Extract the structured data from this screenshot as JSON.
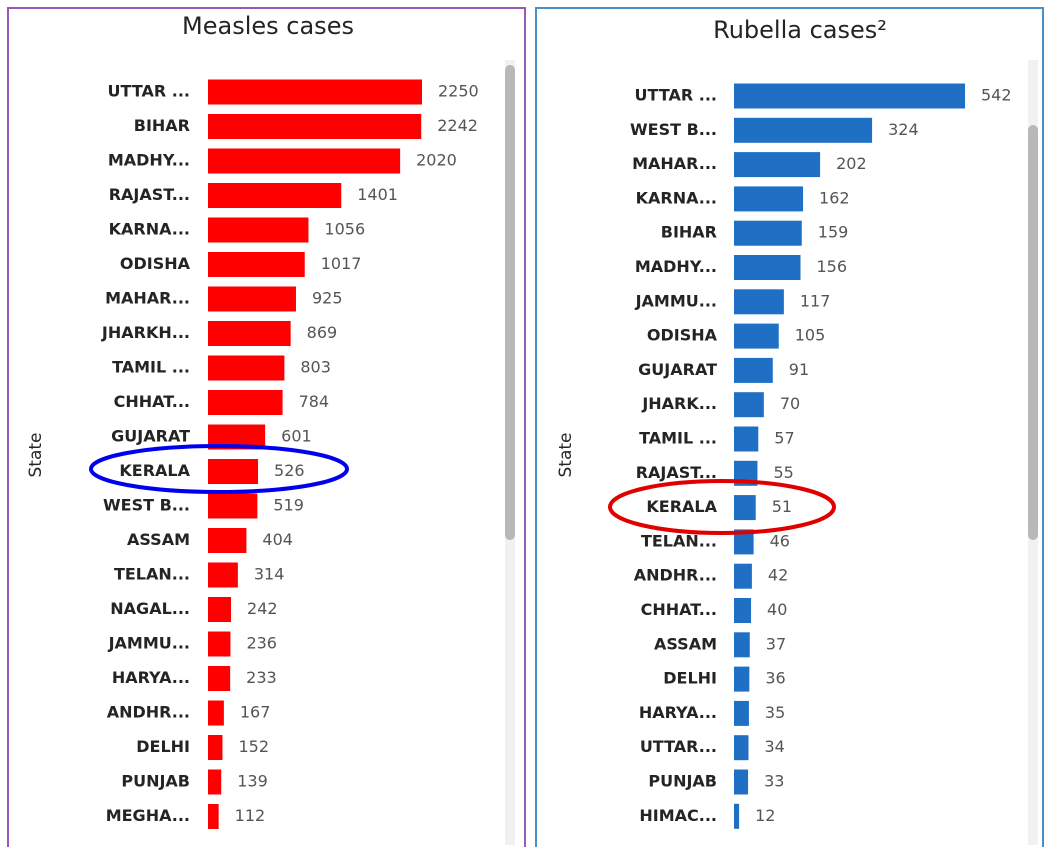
{
  "chart_data": [
    {
      "type": "bar",
      "orientation": "horizontal",
      "title": "Measles cases",
      "y_label": "State",
      "color": "#ff0000",
      "categories": [
        "UTTAR ...",
        "BIHAR",
        "MADHY...",
        "RAJAST...",
        "KARNA...",
        "ODISHA",
        "MAHAR...",
        "JHARKH...",
        "TAMIL ...",
        "CHHAT...",
        "GUJARAT",
        "KERALA",
        "WEST B...",
        "ASSAM",
        "TELAN...",
        "NAGAL...",
        "JAMMU...",
        "HARYA...",
        "ANDHR...",
        "DELHI",
        "PUNJAB",
        "MEGHA..."
      ],
      "values": [
        2250,
        2242,
        2020,
        1401,
        1056,
        1017,
        925,
        869,
        803,
        784,
        601,
        526,
        519,
        404,
        314,
        242,
        236,
        233,
        167,
        152,
        139,
        112
      ]
    },
    {
      "type": "bar",
      "orientation": "horizontal",
      "title": "Rubella cases²",
      "y_label": "State",
      "color": "#1f6fc5",
      "categories": [
        "UTTAR ...",
        "WEST B...",
        "MAHAR...",
        "KARNA...",
        "BIHAR",
        "MADHY...",
        "JAMMU...",
        "ODISHA",
        "GUJARAT",
        "JHARK...",
        "TAMIL ...",
        "RAJAST...",
        "KERALA",
        "TELAN...",
        "ANDHR...",
        "CHHAT...",
        "ASSAM",
        "DELHI",
        "HARYA...",
        "UTTAR...",
        "PUNJAB",
        "HIMAC..."
      ],
      "values": [
        542,
        324,
        202,
        162,
        159,
        156,
        117,
        105,
        91,
        70,
        57,
        55,
        51,
        46,
        42,
        40,
        37,
        36,
        35,
        34,
        33,
        12
      ]
    }
  ]
}
